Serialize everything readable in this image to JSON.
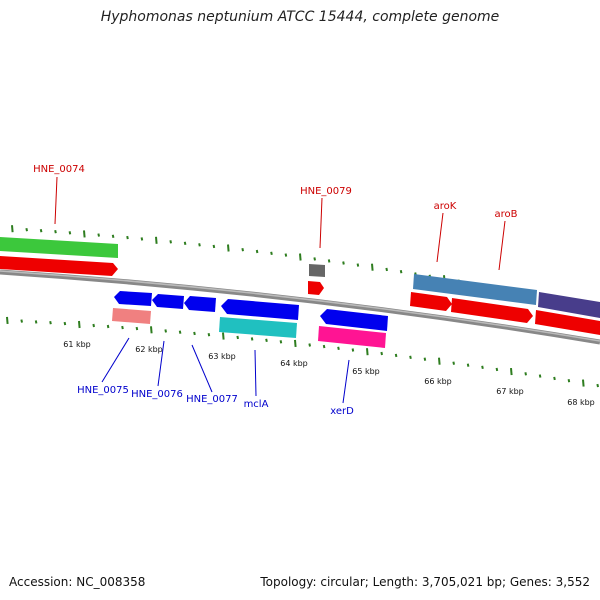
{
  "title": "Hyphomonas neptunium ATCC 15444, complete genome",
  "footer": {
    "accession": "Accession: NC_008358",
    "summary": "Topology: circular; Length: 3,705,021 bp; Genes: 3,552"
  },
  "colors": {
    "tick": "#2e7d1f",
    "backbone": "#888888",
    "label_forward": "#cc0000",
    "label_reverse": "#0000cc"
  },
  "scale_labels": [
    "61 kbp",
    "62 kbp",
    "63 kbp",
    "64 kbp",
    "65 kbp",
    "66 kbp",
    "67 kbp",
    "68 kbp"
  ],
  "genes": [
    {
      "name": "HNE_0074",
      "strand": "+",
      "color": "#3cc83c"
    },
    {
      "name": "HNE_0075",
      "strand": "-",
      "color": "#0000ee"
    },
    {
      "name": "HNE_0076",
      "strand": "-",
      "color": "#0000ee"
    },
    {
      "name": "HNE_0077",
      "strand": "-",
      "color": "#0000ee"
    },
    {
      "name": "mclA",
      "strand": "-",
      "color": "#0000ee"
    },
    {
      "name": "HNE_0079",
      "strand": "+",
      "color": "#666666"
    },
    {
      "name": "xerD",
      "strand": "-",
      "color": "#0000ee"
    },
    {
      "name": "aroK",
      "strand": "+",
      "color": "#4682b4"
    },
    {
      "name": "aroB",
      "strand": "+",
      "color": "#4682b4"
    },
    {
      "name": "",
      "strand": "+",
      "color": "#483d8b"
    }
  ]
}
